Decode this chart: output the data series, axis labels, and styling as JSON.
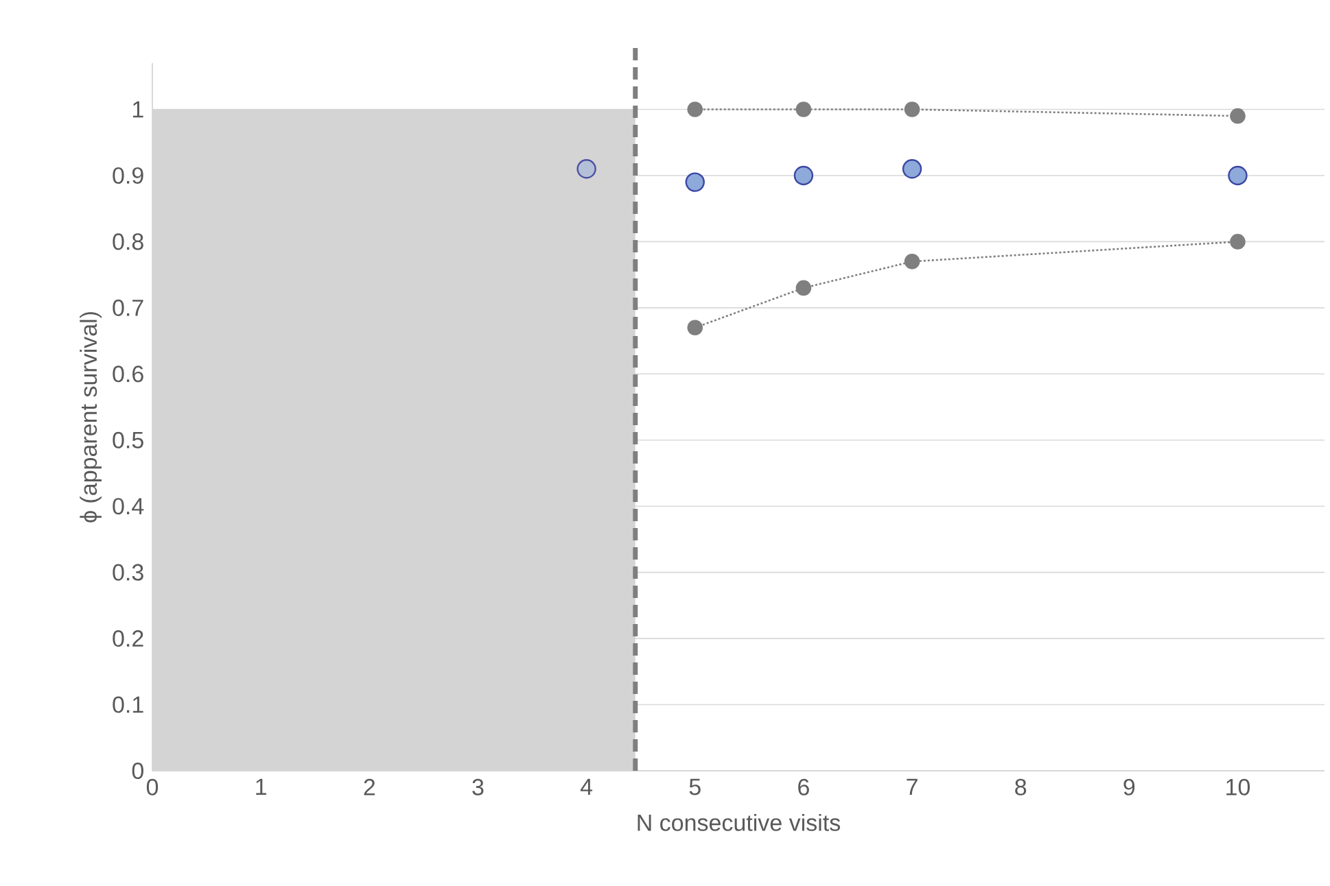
{
  "chart_data": {
    "type": "scatter",
    "xlabel": "N consecutive visits",
    "ylabel": "ϕ (apparent survival)",
    "xlim": [
      0,
      10.8
    ],
    "ylim": [
      0,
      1.07
    ],
    "xticks": [
      0,
      1,
      2,
      3,
      4,
      5,
      6,
      7,
      8,
      9,
      10
    ],
    "yticks": [
      0,
      0.1,
      0.2,
      0.3,
      0.4,
      0.5,
      0.6,
      0.7,
      0.8,
      0.9,
      1
    ],
    "grid": "y",
    "marker": "circle",
    "series": [
      {
        "x": [
          4,
          5,
          6,
          7,
          10
        ],
        "values": [
          0.91,
          0.89,
          0.9,
          0.91,
          0.9
        ],
        "color": "#8eaadb",
        "colors": [
          "#b4c0d8",
          "#8eaadb",
          "#8eaadb",
          "#8eaadb",
          "#8eaadb"
        ]
      },
      {
        "type": "line",
        "x": [
          5,
          6,
          7,
          10
        ],
        "values": [
          1,
          1,
          1,
          0.99
        ],
        "color": "#7f7f7f",
        "line_style": "dotted"
      },
      {
        "type": "line",
        "x": [
          5,
          6,
          7,
          10
        ],
        "values": [
          0.67,
          0.73,
          0.77,
          0.8
        ],
        "color": "#7f7f7f",
        "line_style": "dotted"
      }
    ],
    "bands": [
      {
        "axis": "x",
        "from": 0,
        "to": 4.45,
        "color": "#d4d4d4"
      }
    ],
    "ref_lines": [
      {
        "axis": "x",
        "value": 4.45,
        "color": "#7f7f7f",
        "line_style": "dashed"
      }
    ]
  }
}
